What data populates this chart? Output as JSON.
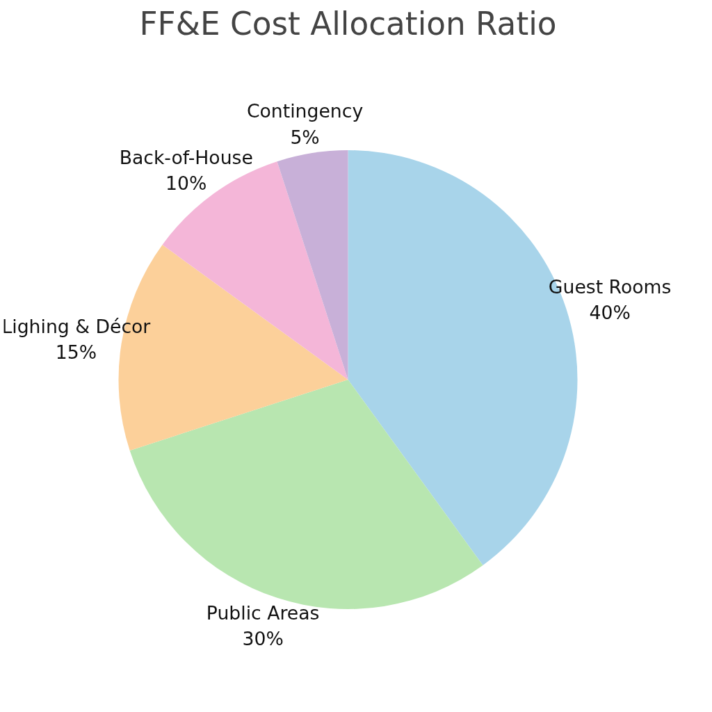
{
  "chart_data": {
    "type": "pie",
    "title": "FF&E Cost Allocation Ratio",
    "categories": [
      "Guest Rooms",
      "Public Areas",
      "Lighing & Décor",
      "Back-of-House",
      "Contingency"
    ],
    "values": [
      40,
      30,
      15,
      10,
      5
    ],
    "value_labels": [
      "40%",
      "30%",
      "15%",
      "10%",
      "5%"
    ],
    "colors": [
      "#a8d4ea",
      "#b8e6b0",
      "#fcd09a",
      "#f4b6d8",
      "#c8b0d8"
    ]
  }
}
